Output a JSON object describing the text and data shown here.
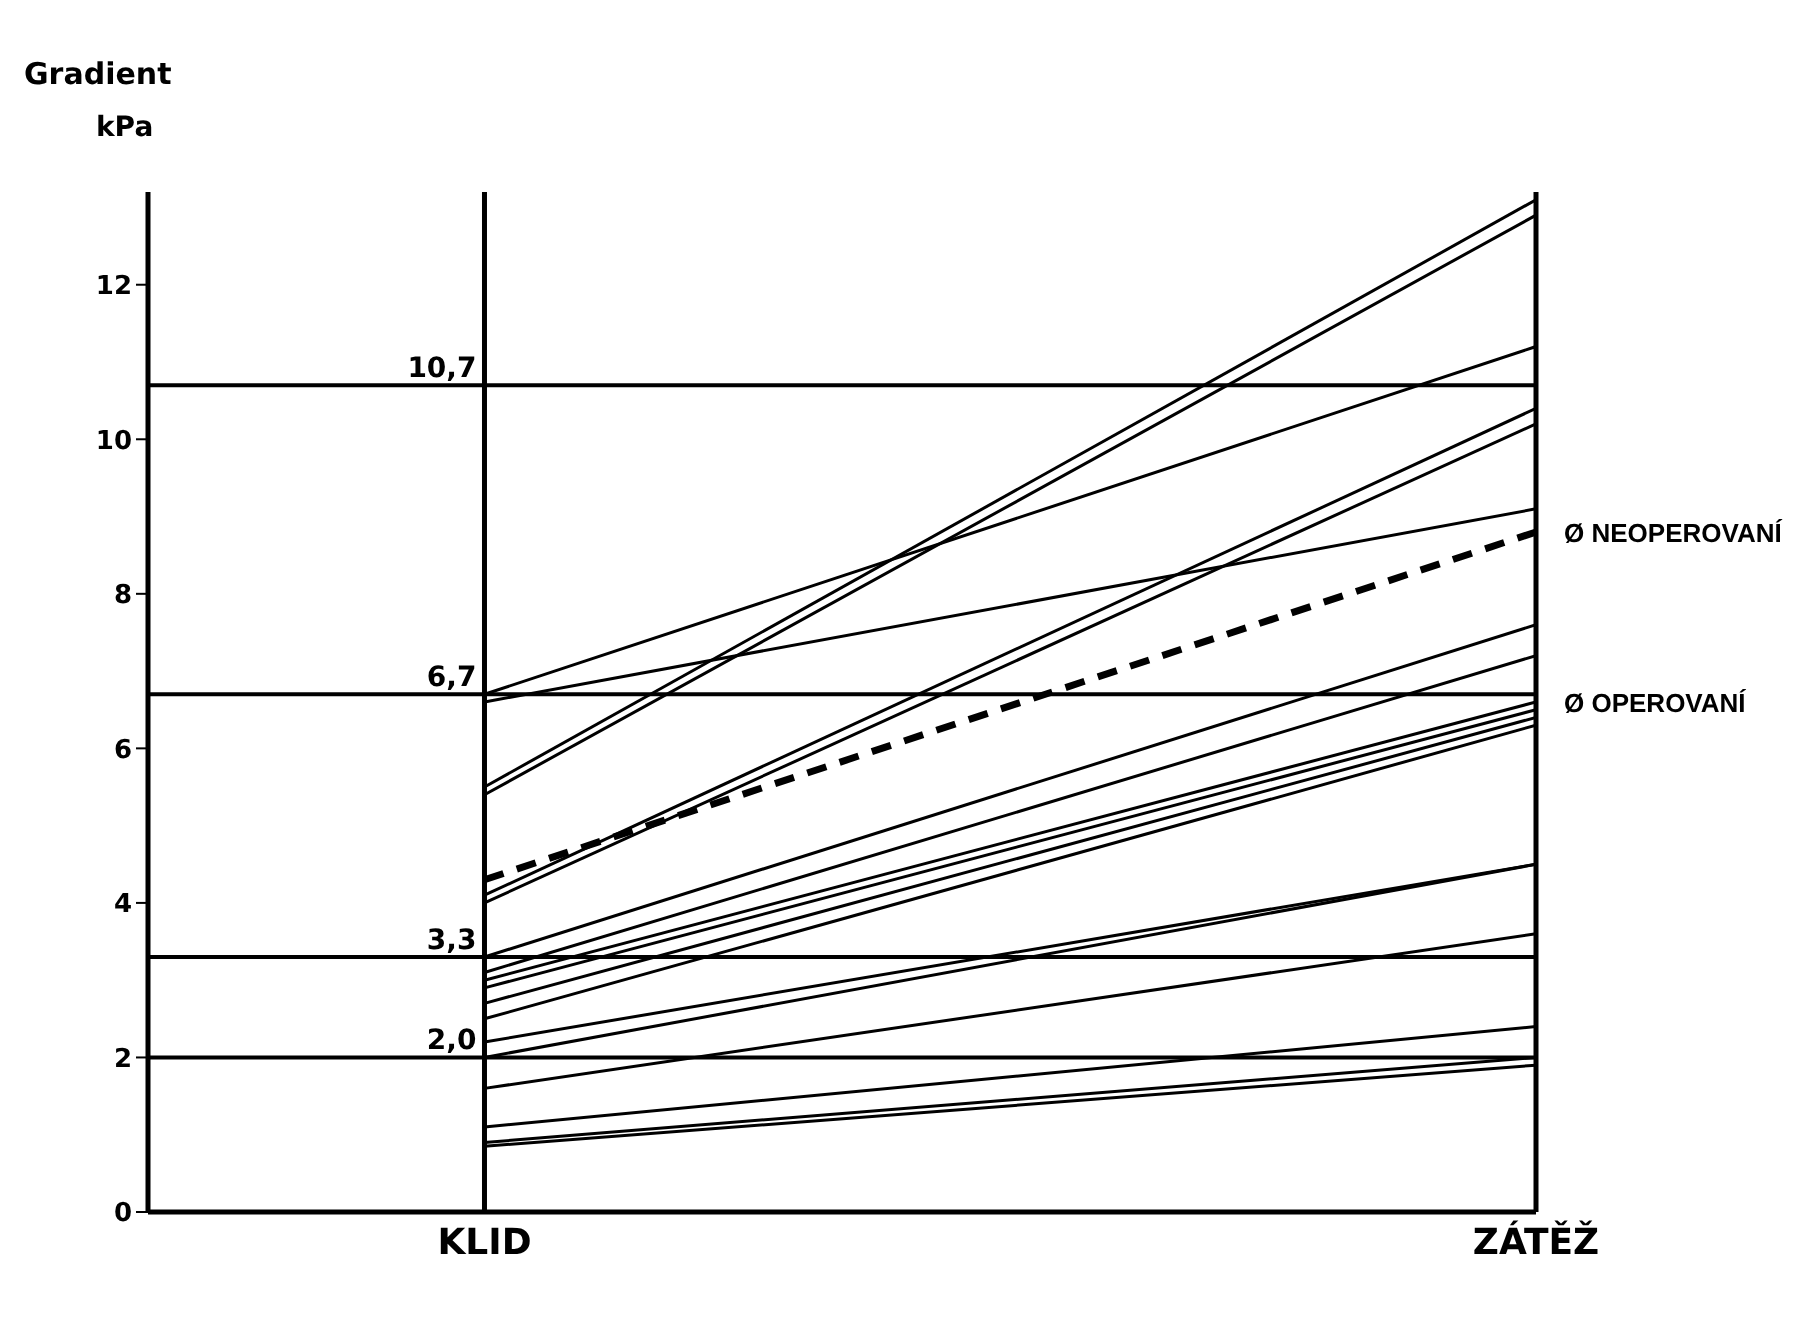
{
  "chart_data": {
    "type": "line",
    "title": "Gradient",
    "ylabel": "kPa",
    "categories": [
      "KLID",
      "ZÁTĚŽ"
    ],
    "series": [
      {
        "color": "#000000",
        "values": [
          6.7,
          11.2
        ]
      },
      {
        "color": "#000000",
        "values": [
          6.6,
          9.1
        ]
      },
      {
        "color": "#000000",
        "values": [
          5.5,
          13.1
        ]
      },
      {
        "color": "#000000",
        "values": [
          5.4,
          12.9
        ]
      },
      {
        "name": "Ø NEOPEROVANÍ",
        "color": "#000000",
        "line_style": "dashed",
        "values": [
          4.3,
          8.8
        ]
      },
      {
        "color": "#000000",
        "values": [
          4.1,
          10.4
        ]
      },
      {
        "color": "#000000",
        "values": [
          4.0,
          10.2
        ]
      },
      {
        "color": "#000000",
        "values": [
          3.3,
          7.6
        ]
      },
      {
        "color": "#000000",
        "values": [
          3.1,
          7.2
        ]
      },
      {
        "name": "Ø OPEROVANÍ",
        "color": "#000000",
        "values": [
          3.0,
          6.6
        ]
      },
      {
        "color": "#000000",
        "values": [
          2.9,
          6.5
        ]
      },
      {
        "color": "#000000",
        "values": [
          2.7,
          6.4
        ]
      },
      {
        "color": "#000000",
        "values": [
          2.5,
          6.3
        ]
      },
      {
        "color": "#000000",
        "values": [
          2.2,
          4.5
        ]
      },
      {
        "color": "#000000",
        "values": [
          2.0,
          4.5
        ]
      },
      {
        "color": "#000000",
        "values": [
          1.6,
          3.6
        ]
      },
      {
        "color": "#000000",
        "values": [
          1.1,
          2.4
        ]
      },
      {
        "color": "#000000",
        "values": [
          0.9,
          2.0
        ]
      },
      {
        "color": "#000000",
        "values": [
          0.85,
          1.9
        ]
      }
    ],
    "ylim": [
      0,
      13.2
    ],
    "yticks": [
      0,
      2,
      4,
      6,
      8,
      10,
      12
    ],
    "legend": false,
    "marker": "none",
    "line_style": "solid",
    "ref_lines": [
      {
        "axis": "x",
        "value": "KLID",
        "color": "#000000"
      },
      {
        "axis": "x",
        "value": "ZÁTĚŽ",
        "color": "#000000"
      },
      {
        "axis": "y",
        "value": 10.7,
        "label": "10,7",
        "color": "#000000"
      },
      {
        "axis": "y",
        "value": 6.7,
        "label": "6,7",
        "color": "#000000"
      },
      {
        "axis": "y",
        "value": 3.3,
        "label": "3,3",
        "color": "#000000"
      },
      {
        "axis": "y",
        "value": 2.0,
        "label": "2,0",
        "color": "#000000"
      }
    ]
  }
}
